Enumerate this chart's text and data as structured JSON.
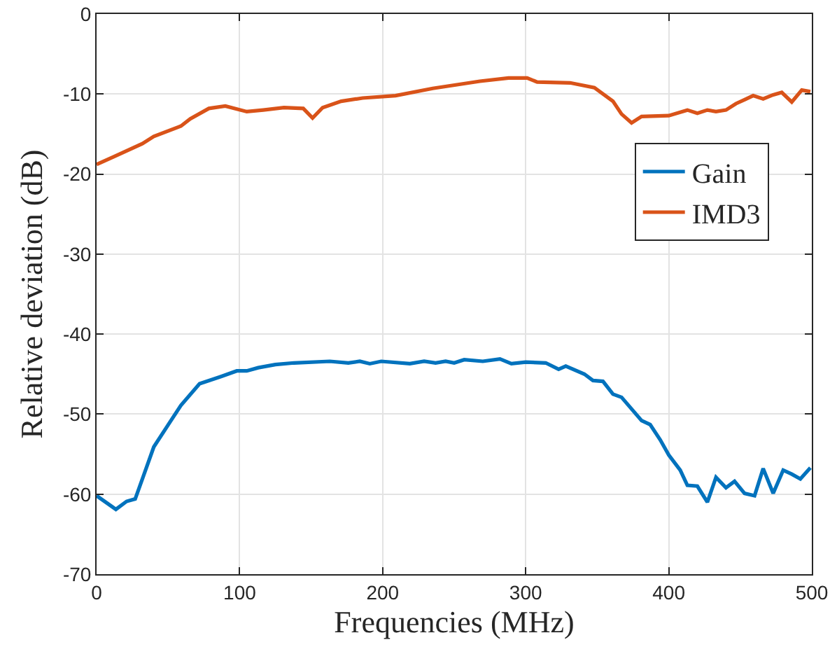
{
  "chart_data": {
    "type": "line",
    "xlabel": "Frequencies (MHz)",
    "ylabel": "Relative deviation (dB)",
    "xlim": [
      0,
      500
    ],
    "xticks": [
      0,
      100,
      200,
      300,
      400,
      500
    ],
    "ylim": [
      -70,
      0
    ],
    "yticks": [
      -70,
      -60,
      -50,
      -40,
      -30,
      -20,
      -10,
      0
    ],
    "grid": true,
    "legend": "top right",
    "marker": "none",
    "line_style": "solid",
    "series": [
      {
        "name": "Gain",
        "color": "#0072bd",
        "x": [
          0,
          13.5,
          21,
          27,
          33,
          40,
          52,
          59,
          72,
          87,
          98,
          105,
          113,
          125,
          138,
          163,
          176,
          184,
          191,
          199,
          219,
          229,
          237,
          244,
          250,
          257,
          270,
          282,
          290,
          300,
          314,
          323,
          328,
          341,
          347,
          354,
          361,
          367,
          381,
          387,
          394,
          400,
          408,
          413,
          420,
          427,
          433,
          440,
          446,
          453,
          460,
          466,
          473,
          480,
          486,
          492,
          499
        ],
        "values": [
          -60.2,
          -61.9,
          -60.9,
          -60.6,
          -57.6,
          -54.1,
          -50.8,
          -48.9,
          -46.2,
          -45.3,
          -44.6,
          -44.6,
          -44.2,
          -43.8,
          -43.6,
          -43.4,
          -43.6,
          -43.4,
          -43.7,
          -43.4,
          -43.7,
          -43.4,
          -43.6,
          -43.4,
          -43.6,
          -43.2,
          -43.4,
          -43.1,
          -43.7,
          -43.5,
          -43.6,
          -44.4,
          -44,
          -45,
          -45.8,
          -45.9,
          -47.5,
          -47.9,
          -50.8,
          -51.3,
          -53.2,
          -55.1,
          -57,
          -58.9,
          -59,
          -61,
          -57.9,
          -59.2,
          -58.4,
          -59.9,
          -60.2,
          -56.8,
          -59.9,
          -57,
          -57.5,
          -58.1,
          -56.7
        ]
      },
      {
        "name": "IMD3",
        "color": "#d95319",
        "x": [
          0,
          12.5,
          32,
          40,
          59,
          65.5,
          78.5,
          90,
          105,
          116.5,
          131,
          144.5,
          151,
          158,
          171,
          186,
          209,
          235,
          268,
          288,
          301,
          308,
          331,
          348,
          361,
          367,
          374,
          381,
          400,
          413,
          420,
          427,
          433,
          440,
          447,
          453,
          459,
          466,
          473,
          479,
          486,
          493,
          499
        ],
        "values": [
          -18.8,
          -17.8,
          -16.2,
          -15.3,
          -14,
          -13.1,
          -11.8,
          -11.5,
          -12.2,
          -12,
          -11.7,
          -11.8,
          -13,
          -11.7,
          -10.9,
          -10.5,
          -10.2,
          -9.3,
          -8.4,
          -8,
          -8,
          -8.5,
          -8.6,
          -9.2,
          -10.9,
          -12.5,
          -13.6,
          -12.8,
          -12.7,
          -12,
          -12.4,
          -12,
          -12.2,
          -12,
          -11.2,
          -10.7,
          -10.2,
          -10.6,
          -10.1,
          -9.8,
          -11,
          -9.5,
          -9.7
        ]
      }
    ]
  }
}
